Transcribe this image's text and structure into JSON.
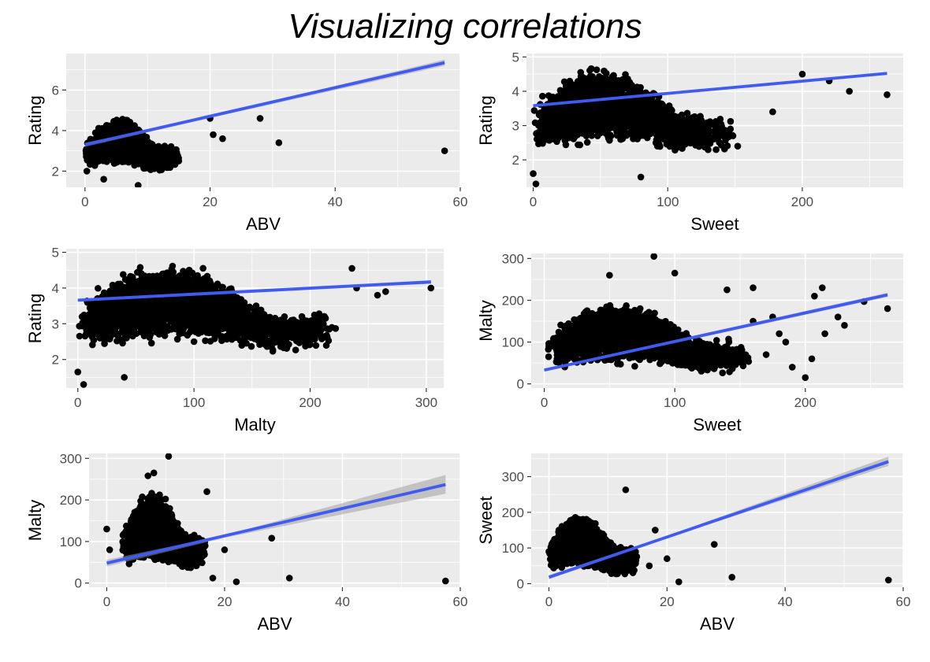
{
  "title": "Visualizing correlations",
  "colors": {
    "panel_bg": "#ebebeb",
    "grid_major": "#ffffff",
    "point": "#000000",
    "fit_line": "#3f5bf2",
    "confidence_band": "#9a9a9a",
    "tick_text": "#4d4d4d",
    "axis_title": "#000000"
  },
  "chart_data": [
    {
      "type": "scatter",
      "xlabel": "ABV",
      "ylabel": "Rating",
      "xlim": [
        -3,
        60
      ],
      "ylim": [
        1.2,
        7.8
      ],
      "xticks": [
        0,
        20,
        40,
        60
      ],
      "yticks": [
        2,
        4,
        6
      ],
      "grid": true,
      "cluster": {
        "x_range": [
          0,
          15
        ],
        "y_range": [
          1.6,
          4.8
        ],
        "x_peak": 7
      },
      "points": [
        [
          28,
          4.6
        ],
        [
          31,
          3.4
        ],
        [
          57.5,
          3.0
        ],
        [
          22,
          3.6
        ],
        [
          20,
          4.6
        ],
        [
          20.5,
          3.8
        ],
        [
          15,
          2.5
        ],
        [
          0.3,
          2.0
        ],
        [
          3,
          1.6
        ],
        [
          8.5,
          1.3
        ]
      ],
      "fit": {
        "x": [
          0,
          57.5
        ],
        "y": [
          3.3,
          7.35
        ],
        "band": [
          [
            0,
            3.2,
            3.4
          ],
          [
            20,
            4.62,
            4.72
          ],
          [
            57.5,
            7.2,
            7.5
          ]
        ]
      }
    },
    {
      "type": "scatter",
      "xlabel": "Sweet",
      "ylabel": "Rating",
      "xlim": [
        -5,
        275
      ],
      "ylim": [
        1.2,
        5.1
      ],
      "xticks": [
        0,
        100,
        200
      ],
      "yticks": [
        2,
        3,
        4,
        5
      ],
      "grid": true,
      "cluster": {
        "x_range": [
          0,
          150
        ],
        "y_range": [
          1.8,
          4.8
        ],
        "x_peak": 30
      },
      "points": [
        [
          263,
          3.9
        ],
        [
          235,
          4.0
        ],
        [
          200,
          4.5
        ],
        [
          220,
          4.3
        ],
        [
          178,
          3.4
        ],
        [
          152,
          2.4
        ],
        [
          80,
          1.5
        ],
        [
          2,
          1.3
        ],
        [
          0,
          1.6
        ]
      ],
      "fit": {
        "x": [
          0,
          263
        ],
        "y": [
          3.58,
          4.52
        ],
        "band": [
          [
            0,
            3.55,
            3.61
          ],
          [
            263,
            4.48,
            4.56
          ]
        ]
      }
    },
    {
      "type": "scatter",
      "xlabel": "Malty",
      "ylabel": "Rating",
      "xlim": [
        -10,
        315
      ],
      "ylim": [
        1.2,
        5.1
      ],
      "xticks": [
        0,
        100,
        200,
        300
      ],
      "yticks": [
        2,
        3,
        4,
        5
      ],
      "grid": true,
      "cluster": {
        "x_range": [
          0,
          225
        ],
        "y_range": [
          1.8,
          4.8
        ],
        "x_peak": 40
      },
      "points": [
        [
          304,
          4.0
        ],
        [
          265,
          3.9
        ],
        [
          258,
          3.8
        ],
        [
          240,
          4.0
        ],
        [
          236,
          4.55
        ],
        [
          5,
          1.3
        ],
        [
          0,
          1.65
        ],
        [
          40,
          1.5
        ],
        [
          100,
          2.5
        ]
      ],
      "fit": {
        "x": [
          0,
          304
        ],
        "y": [
          3.66,
          4.17
        ],
        "band": [
          [
            0,
            3.62,
            3.7
          ],
          [
            304,
            4.12,
            4.22
          ]
        ]
      }
    },
    {
      "type": "scatter",
      "xlabel": "Sweet",
      "ylabel": "Malty",
      "xlim": [
        -10,
        275
      ],
      "ylim": [
        -10,
        312
      ],
      "xticks": [
        0,
        100,
        200
      ],
      "yticks": [
        0,
        100,
        200,
        300
      ],
      "grid": true,
      "cluster": {
        "x_range": [
          0,
          160
        ],
        "y_range": [
          0,
          200
        ],
        "x_peak": 55
      },
      "points": [
        [
          84,
          305
        ],
        [
          100,
          265
        ],
        [
          50,
          260
        ],
        [
          263,
          180
        ],
        [
          245,
          197
        ],
        [
          213,
          230
        ],
        [
          207,
          210
        ],
        [
          180,
          120
        ],
        [
          225,
          160
        ],
        [
          200,
          15
        ],
        [
          160,
          150
        ],
        [
          170,
          70
        ],
        [
          190,
          40
        ],
        [
          215,
          120
        ],
        [
          185,
          100
        ],
        [
          140,
          225
        ],
        [
          160,
          230
        ],
        [
          205,
          60
        ],
        [
          230,
          140
        ],
        [
          175,
          160
        ]
      ],
      "fit": {
        "x": [
          0,
          263
        ],
        "y": [
          33,
          213
        ],
        "band": [
          [
            0,
            30,
            36
          ],
          [
            263,
            208,
            218
          ]
        ]
      }
    },
    {
      "type": "scatter",
      "xlabel": "ABV",
      "ylabel": "Malty",
      "xlim": [
        -3,
        60
      ],
      "ylim": [
        -10,
        312
      ],
      "xticks": [
        0,
        20,
        40,
        60
      ],
      "yticks": [
        0,
        100,
        200,
        300
      ],
      "grid": true,
      "cluster": {
        "x_range": [
          2.5,
          17
        ],
        "y_range": [
          0,
          230
        ],
        "x_peak": 9
      },
      "points": [
        [
          10.5,
          305
        ],
        [
          8,
          265
        ],
        [
          7,
          258
        ],
        [
          17,
          220
        ],
        [
          28,
          108
        ],
        [
          31,
          12
        ],
        [
          57.5,
          5
        ],
        [
          22,
          3
        ],
        [
          0,
          130
        ],
        [
          0.5,
          80
        ],
        [
          20,
          80
        ],
        [
          18,
          12
        ]
      ],
      "fit": {
        "x": [
          0,
          57.5
        ],
        "y": [
          48,
          237
        ],
        "band": [
          [
            0,
            40,
            56
          ],
          [
            20,
            109,
            115
          ],
          [
            57.5,
            215,
            260
          ]
        ]
      }
    },
    {
      "type": "scatter",
      "xlabel": "ABV",
      "ylabel": "Sweet",
      "xlim": [
        -3,
        60
      ],
      "ylim": [
        -10,
        365
      ],
      "xticks": [
        0,
        20,
        40,
        60
      ],
      "yticks": [
        0,
        100,
        200,
        300
      ],
      "grid": true,
      "cluster": {
        "x_range": [
          0,
          15
        ],
        "y_range": [
          0,
          200
        ],
        "x_peak": 8
      },
      "points": [
        [
          13,
          263
        ],
        [
          28,
          110
        ],
        [
          31,
          18
        ],
        [
          57.5,
          10
        ],
        [
          22,
          5
        ],
        [
          18,
          150
        ],
        [
          20,
          70
        ],
        [
          0,
          90
        ],
        [
          17,
          50
        ]
      ],
      "fit": {
        "x": [
          0,
          57.5
        ],
        "y": [
          18,
          342
        ],
        "band": [
          [
            0,
            12,
            24
          ],
          [
            20,
            128,
            134
          ],
          [
            57.5,
            330,
            356
          ]
        ]
      }
    }
  ]
}
